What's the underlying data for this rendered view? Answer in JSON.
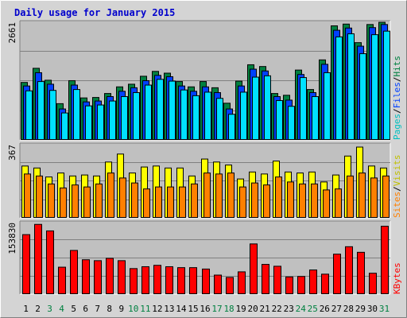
{
  "chart_data": {
    "type": "bar",
    "title": "Daily usage for January 2015",
    "x": [
      "1",
      "2",
      "3",
      "4",
      "5",
      "6",
      "7",
      "8",
      "9",
      "10",
      "11",
      "12",
      "13",
      "14",
      "15",
      "16",
      "17",
      "18",
      "19",
      "20",
      "21",
      "22",
      "23",
      "24",
      "25",
      "26",
      "27",
      "28",
      "29",
      "30",
      "31"
    ],
    "weekend_days": [
      "3",
      "4",
      "10",
      "11",
      "17",
      "18",
      "24",
      "25",
      "31"
    ],
    "panels": [
      {
        "name": "hits-files-pages",
        "max_label": "2661",
        "ymax": 2661,
        "grid": true,
        "side_labels": [
          "Pages",
          "Files",
          "Hits"
        ],
        "series": [
          {
            "name": "Hits",
            "color": "#008040",
            "values": [
              1300,
              1620,
              1350,
              820,
              1340,
              950,
              960,
              1050,
              1200,
              1260,
              1440,
              1550,
              1510,
              1320,
              1200,
              1320,
              1180,
              830,
              1330,
              1700,
              1660,
              1050,
              1010,
              1580,
              1140,
              1810,
              2580,
              2620,
              2200,
              2610,
              2660
            ]
          },
          {
            "name": "Files",
            "color": "#0040ff",
            "values": [
              1220,
              1520,
              1260,
              700,
              1240,
              860,
              880,
              980,
              1100,
              1180,
              1340,
              1460,
              1430,
              1220,
              1100,
              1200,
              1070,
              700,
              1220,
              1600,
              1560,
              980,
              900,
              1480,
              1070,
              1710,
              2480,
              2530,
              2120,
              2540,
              2610
            ]
          },
          {
            "name": "Pages",
            "color": "#00e0ff",
            "values": [
              1110,
              1320,
              1120,
              610,
              1140,
              770,
              790,
              880,
              980,
              1070,
              1240,
              1370,
              1330,
              1130,
              1000,
              1080,
              940,
              580,
              1080,
              1420,
              1450,
              890,
              760,
              1410,
              980,
              1520,
              2330,
              2400,
              1950,
              2380,
              2460
            ]
          }
        ]
      },
      {
        "name": "visits-sites",
        "max_label": "367",
        "ymax": 367,
        "grid": true,
        "side_labels": [
          "Sites",
          "/",
          "Visits"
        ],
        "series": [
          {
            "name": "Visits",
            "color": "#ffff00",
            "values": [
              260,
              250,
              205,
              225,
              210,
              215,
              210,
              280,
              320,
              225,
              255,
              260,
              250,
              250,
              210,
              295,
              280,
              265,
              195,
              230,
              220,
              285,
              230,
              225,
              230,
              180,
              215,
              310,
              355,
              260,
              250
            ]
          },
          {
            "name": "Sites",
            "color": "#ff8000",
            "values": [
              220,
              210,
              170,
              150,
              165,
              155,
              170,
              225,
              200,
              175,
              145,
              155,
              155,
              155,
              170,
              225,
              220,
              225,
              155,
              175,
              165,
              205,
              180,
              170,
              170,
              140,
              145,
              210,
              225,
              200,
              210
            ]
          }
        ]
      },
      {
        "name": "kbytes",
        "max_label": "153830",
        "ymax": 153830,
        "grid": true,
        "side_labels": [
          "KBytes"
        ],
        "series": [
          {
            "name": "KBytes",
            "color": "#ff0000",
            "values": [
              128000,
              150000,
              136000,
              58000,
              94000,
              74000,
              72000,
              77000,
              72000,
              55000,
              59000,
              62000,
              59000,
              57000,
              57000,
              54000,
              41000,
              36000,
              48000,
              108000,
              64000,
              60000,
              37000,
              38000,
              52000,
              43000,
              86000,
              102000,
              90000,
              45000,
              146000
            ]
          }
        ]
      }
    ]
  }
}
